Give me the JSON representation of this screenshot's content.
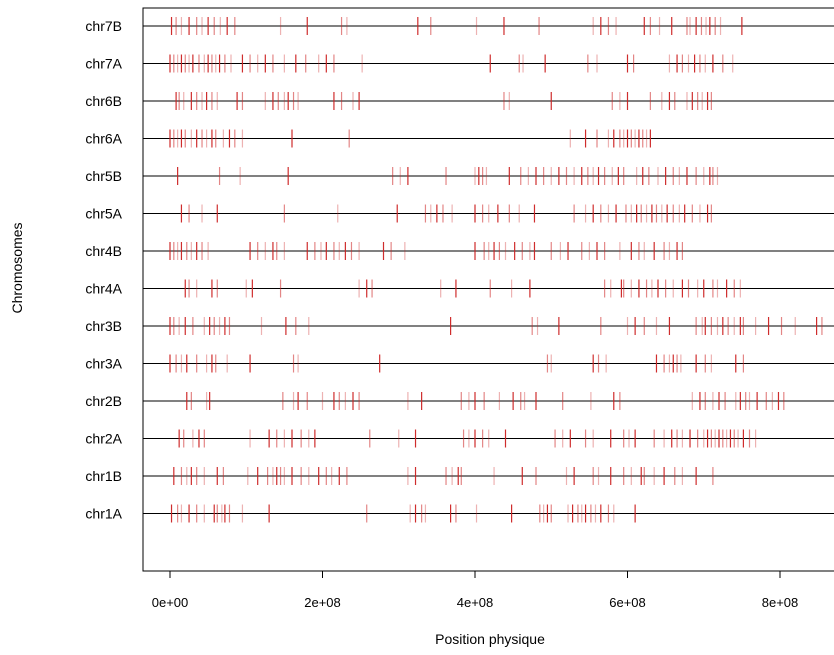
{
  "chart_data": {
    "type": "scatter",
    "title": "",
    "xlabel": "Position physique",
    "ylabel": "Chromosomes",
    "xlim": [
      -40000000,
      860000000
    ],
    "x_ticks": [
      0,
      200000000,
      400000000,
      600000000,
      800000000
    ],
    "x_tick_labels": [
      "0e+00",
      "2e+08",
      "4e+08",
      "6e+08",
      "8e+08"
    ],
    "categories": [
      "chr7B",
      "chr7A",
      "chr6B",
      "chr6A",
      "chr5B",
      "chr5A",
      "chr4B",
      "chr4A",
      "chr3B",
      "chr3A",
      "chr2B",
      "chr2A",
      "chr1B",
      "chr1A"
    ],
    "marker": "vertical tick",
    "marker_color": "#cc2222",
    "baseline_color": "#000000",
    "grid": false,
    "series": [
      {
        "category": "chr7B",
        "x": [
          2000000,
          8000000,
          15000000,
          25000000,
          35000000,
          42000000,
          50000000,
          58000000,
          66000000,
          75000000,
          85000000,
          145000000,
          180000000,
          225000000,
          232000000,
          325000000,
          342000000,
          402000000,
          438000000,
          484000000,
          555000000,
          565000000,
          575000000,
          585000000,
          622000000,
          630000000,
          642000000,
          658000000,
          678000000,
          682000000,
          690000000,
          697000000,
          703000000,
          708000000,
          715000000,
          722000000,
          750000000
        ]
      },
      {
        "category": "chr7A",
        "x": [
          0,
          5000000,
          10000000,
          15000000,
          20000000,
          25000000,
          30000000,
          38000000,
          45000000,
          50000000,
          55000000,
          60000000,
          65000000,
          72000000,
          80000000,
          95000000,
          105000000,
          115000000,
          125000000,
          135000000,
          150000000,
          165000000,
          178000000,
          195000000,
          205000000,
          215000000,
          252000000,
          420000000,
          458000000,
          463000000,
          492000000,
          548000000,
          560000000,
          600000000,
          608000000,
          655000000,
          665000000,
          672000000,
          680000000,
          688000000,
          695000000,
          702000000,
          712000000,
          725000000,
          738000000
        ]
      },
      {
        "category": "chr6B",
        "x": [
          8000000,
          12000000,
          18000000,
          28000000,
          35000000,
          42000000,
          48000000,
          55000000,
          62000000,
          88000000,
          95000000,
          125000000,
          135000000,
          142000000,
          150000000,
          155000000,
          162000000,
          168000000,
          215000000,
          225000000,
          240000000,
          248000000,
          438000000,
          445000000,
          500000000,
          580000000,
          590000000,
          600000000,
          630000000,
          645000000,
          655000000,
          662000000,
          678000000,
          685000000,
          692000000,
          698000000,
          705000000,
          710000000
        ]
      },
      {
        "category": "chr6A",
        "x": [
          0,
          5000000,
          10000000,
          15000000,
          20000000,
          28000000,
          35000000,
          42000000,
          48000000,
          55000000,
          60000000,
          70000000,
          78000000,
          85000000,
          95000000,
          160000000,
          235000000,
          525000000,
          545000000,
          560000000,
          575000000,
          582000000,
          590000000,
          595000000,
          600000000,
          605000000,
          610000000,
          615000000,
          620000000,
          625000000,
          630000000
        ]
      },
      {
        "category": "chr5B",
        "x": [
          10000000,
          65000000,
          92000000,
          155000000,
          292000000,
          302000000,
          312000000,
          362000000,
          400000000,
          405000000,
          410000000,
          415000000,
          445000000,
          460000000,
          470000000,
          480000000,
          490000000,
          500000000,
          510000000,
          520000000,
          530000000,
          540000000,
          548000000,
          555000000,
          562000000,
          570000000,
          580000000,
          588000000,
          595000000,
          612000000,
          620000000,
          628000000,
          640000000,
          650000000,
          660000000,
          668000000,
          678000000,
          690000000,
          700000000,
          708000000,
          712000000,
          718000000
        ]
      },
      {
        "category": "chr5A",
        "x": [
          15000000,
          25000000,
          42000000,
          62000000,
          150000000,
          220000000,
          298000000,
          335000000,
          342000000,
          350000000,
          358000000,
          370000000,
          400000000,
          410000000,
          418000000,
          430000000,
          445000000,
          458000000,
          478000000,
          530000000,
          545000000,
          555000000,
          565000000,
          575000000,
          585000000,
          598000000,
          605000000,
          612000000,
          618000000,
          625000000,
          632000000,
          638000000,
          645000000,
          652000000,
          660000000,
          668000000,
          675000000,
          685000000,
          695000000,
          705000000,
          710000000
        ]
      },
      {
        "category": "chr4B",
        "x": [
          0,
          5000000,
          10000000,
          15000000,
          22000000,
          28000000,
          35000000,
          42000000,
          50000000,
          105000000,
          115000000,
          125000000,
          135000000,
          140000000,
          150000000,
          180000000,
          190000000,
          198000000,
          205000000,
          215000000,
          222000000,
          230000000,
          238000000,
          248000000,
          280000000,
          290000000,
          308000000,
          400000000,
          412000000,
          418000000,
          425000000,
          432000000,
          440000000,
          452000000,
          462000000,
          472000000,
          478000000,
          500000000,
          512000000,
          522000000,
          540000000,
          550000000,
          560000000,
          570000000,
          590000000,
          605000000,
          615000000,
          622000000,
          635000000,
          648000000,
          655000000,
          665000000,
          672000000
        ]
      },
      {
        "category": "chr4A",
        "x": [
          20000000,
          25000000,
          35000000,
          55000000,
          62000000,
          100000000,
          108000000,
          145000000,
          248000000,
          258000000,
          265000000,
          355000000,
          375000000,
          420000000,
          448000000,
          472000000,
          570000000,
          578000000,
          592000000,
          595000000,
          605000000,
          615000000,
          625000000,
          632000000,
          640000000,
          650000000,
          660000000,
          672000000,
          680000000,
          692000000,
          700000000,
          712000000,
          718000000,
          730000000,
          740000000,
          748000000
        ]
      },
      {
        "category": "chr3B",
        "x": [
          0,
          5000000,
          12000000,
          20000000,
          30000000,
          45000000,
          52000000,
          58000000,
          65000000,
          72000000,
          78000000,
          120000000,
          152000000,
          165000000,
          182000000,
          368000000,
          475000000,
          482000000,
          510000000,
          565000000,
          600000000,
          610000000,
          622000000,
          638000000,
          655000000,
          690000000,
          698000000,
          702000000,
          710000000,
          718000000,
          725000000,
          732000000,
          740000000,
          748000000,
          752000000,
          768000000,
          785000000,
          802000000,
          820000000,
          848000000,
          855000000
        ]
      },
      {
        "category": "chr3A",
        "x": [
          0,
          8000000,
          15000000,
          22000000,
          35000000,
          48000000,
          55000000,
          60000000,
          75000000,
          105000000,
          162000000,
          168000000,
          275000000,
          495000000,
          500000000,
          555000000,
          562000000,
          572000000,
          638000000,
          648000000,
          655000000,
          660000000,
          665000000,
          670000000,
          690000000,
          702000000,
          710000000,
          742000000,
          752000000
        ]
      },
      {
        "category": "chr2B",
        "x": [
          22000000,
          28000000,
          48000000,
          52000000,
          148000000,
          162000000,
          168000000,
          180000000,
          200000000,
          215000000,
          222000000,
          230000000,
          240000000,
          248000000,
          312000000,
          330000000,
          382000000,
          392000000,
          400000000,
          412000000,
          432000000,
          450000000,
          460000000,
          465000000,
          480000000,
          515000000,
          552000000,
          582000000,
          590000000,
          685000000,
          695000000,
          702000000,
          712000000,
          720000000,
          728000000,
          742000000,
          748000000,
          755000000,
          760000000,
          770000000,
          782000000,
          790000000,
          798000000,
          805000000
        ]
      },
      {
        "category": "chr2A",
        "x": [
          12000000,
          18000000,
          30000000,
          38000000,
          45000000,
          105000000,
          130000000,
          140000000,
          150000000,
          160000000,
          172000000,
          182000000,
          190000000,
          262000000,
          300000000,
          322000000,
          385000000,
          392000000,
          400000000,
          410000000,
          418000000,
          440000000,
          505000000,
          515000000,
          525000000,
          545000000,
          555000000,
          578000000,
          595000000,
          602000000,
          610000000,
          635000000,
          648000000,
          658000000,
          665000000,
          672000000,
          682000000,
          692000000,
          700000000,
          705000000,
          710000000,
          715000000,
          720000000,
          725000000,
          730000000,
          735000000,
          740000000,
          745000000,
          752000000,
          760000000,
          768000000
        ]
      },
      {
        "category": "chr1B",
        "x": [
          5000000,
          15000000,
          22000000,
          28000000,
          35000000,
          45000000,
          62000000,
          70000000,
          102000000,
          115000000,
          128000000,
          135000000,
          140000000,
          145000000,
          150000000,
          160000000,
          172000000,
          182000000,
          195000000,
          205000000,
          212000000,
          222000000,
          232000000,
          312000000,
          322000000,
          362000000,
          370000000,
          378000000,
          382000000,
          425000000,
          462000000,
          480000000,
          520000000,
          530000000,
          555000000,
          562000000,
          578000000,
          595000000,
          605000000,
          618000000,
          622000000,
          635000000,
          648000000,
          662000000,
          672000000,
          690000000,
          712000000
        ]
      },
      {
        "category": "chr1A",
        "x": [
          2000000,
          10000000,
          15000000,
          25000000,
          35000000,
          45000000,
          58000000,
          62000000,
          68000000,
          72000000,
          78000000,
          95000000,
          130000000,
          258000000,
          315000000,
          322000000,
          330000000,
          335000000,
          368000000,
          375000000,
          402000000,
          448000000,
          485000000,
          490000000,
          495000000,
          500000000,
          522000000,
          528000000,
          535000000,
          540000000,
          545000000,
          552000000,
          558000000,
          565000000,
          575000000,
          582000000,
          610000000
        ]
      }
    ]
  }
}
